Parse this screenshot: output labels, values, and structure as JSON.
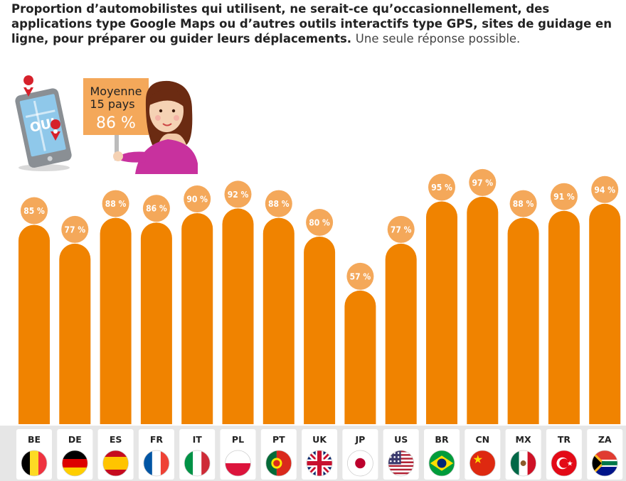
{
  "title_bold": "Proportion d’automobilistes qui utilisent, ne serait-ce qu’occasionnellement, des applications type Google Maps ou d’autres outils interactifs type GPS, sites de guidage en ligne, pour préparer ou guider leurs déplacements.",
  "title_light": "Une seule réponse possible.",
  "illustration": {
    "phone_text": "OUI",
    "sign_line1": "Moyenne",
    "sign_line2": "15 pays",
    "sign_value": "86 %"
  },
  "colors": {
    "bar": "#F08300",
    "value_bubble": "#F4A85A",
    "tick_panel": "#E6E6E6"
  },
  "chart_data": {
    "type": "bar",
    "categories": [
      "BE",
      "DE",
      "ES",
      "FR",
      "IT",
      "PL",
      "PT",
      "UK",
      "JP",
      "US",
      "BR",
      "CN",
      "MX",
      "TR",
      "ZA"
    ],
    "values": [
      85,
      77,
      88,
      86,
      90,
      92,
      88,
      80,
      57,
      77,
      95,
      97,
      88,
      91,
      94
    ],
    "value_labels": [
      "85 %",
      "77 %",
      "88 %",
      "86 %",
      "90 %",
      "92 %",
      "88 %",
      "80 %",
      "57 %",
      "77 %",
      "95 %",
      "97 %",
      "88 %",
      "91 %",
      "94 %"
    ],
    "ylim": [
      0,
      100
    ],
    "title": "",
    "xlabel": "",
    "ylabel": "",
    "grid": false,
    "legend": "none",
    "flags": [
      "belgium-flag-icon",
      "germany-flag-icon",
      "spain-flag-icon",
      "france-flag-icon",
      "italy-flag-icon",
      "poland-flag-icon",
      "portugal-flag-icon",
      "uk-flag-icon",
      "japan-flag-icon",
      "usa-flag-icon",
      "brazil-flag-icon",
      "china-flag-icon",
      "mexico-flag-icon",
      "turkey-flag-icon",
      "south-africa-flag-icon"
    ]
  }
}
